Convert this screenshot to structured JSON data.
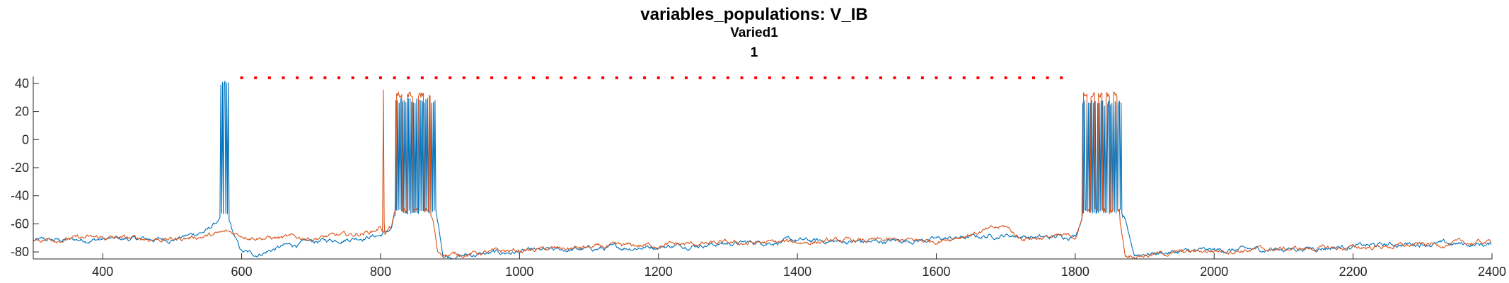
{
  "chart_data": {
    "type": "line",
    "title": "variables_populations: V_IB",
    "subtitle": "Varied1",
    "subtitle2": "1",
    "xlabel": "",
    "ylabel": "",
    "xlim": [
      300,
      2400
    ],
    "ylim": [
      -85,
      45
    ],
    "xticks": [
      400,
      600,
      800,
      1000,
      1200,
      1400,
      1600,
      1800,
      2000,
      2200,
      2400
    ],
    "yticks": [
      -80,
      -60,
      -40,
      -20,
      0,
      20,
      40
    ],
    "grid": false,
    "legend": "none",
    "colors": {
      "series1": "#0072BD",
      "series2": "#D95319",
      "marker": "#FF0000",
      "axis": "#262626"
    },
    "series": [
      {
        "color": "#0072BD",
        "baseline": [
          [
            300,
            -72
          ],
          [
            400,
            -71
          ],
          [
            500,
            -71
          ],
          [
            550,
            -65
          ],
          [
            570,
            -56
          ],
          [
            580,
            -55
          ],
          [
            590,
            -70
          ],
          [
            600,
            -80
          ],
          [
            620,
            -82
          ],
          [
            660,
            -76
          ],
          [
            700,
            -73
          ],
          [
            760,
            -70
          ],
          [
            800,
            -68
          ],
          [
            815,
            -64
          ],
          [
            820,
            -55
          ],
          [
            830,
            -53
          ],
          [
            880,
            -53
          ],
          [
            885,
            -66
          ],
          [
            890,
            -82
          ],
          [
            900,
            -83
          ],
          [
            1000,
            -80
          ],
          [
            1100,
            -78
          ],
          [
            1200,
            -76
          ],
          [
            1300,
            -74
          ],
          [
            1400,
            -72
          ],
          [
            1500,
            -73
          ],
          [
            1600,
            -71
          ],
          [
            1700,
            -68
          ],
          [
            1760,
            -70
          ],
          [
            1800,
            -68
          ],
          [
            1810,
            -55
          ],
          [
            1820,
            -53
          ],
          [
            1860,
            -53
          ],
          [
            1870,
            -55
          ],
          [
            1878,
            -70
          ],
          [
            1885,
            -82
          ],
          [
            1900,
            -81
          ],
          [
            2000,
            -79
          ],
          [
            2100,
            -78
          ],
          [
            2200,
            -76
          ],
          [
            2300,
            -74
          ],
          [
            2400,
            -75
          ]
        ],
        "spike_bursts": [
          {
            "start": 570,
            "end": 582,
            "count": 6,
            "peak": 43,
            "trough": -55
          },
          {
            "start": 822,
            "end": 880,
            "count": 26,
            "peak": 30,
            "trough": -53
          },
          {
            "start": 1810,
            "end": 1868,
            "count": 26,
            "peak": 28,
            "trough": -53
          }
        ]
      },
      {
        "color": "#D95319",
        "baseline": [
          [
            300,
            -71
          ],
          [
            400,
            -70
          ],
          [
            500,
            -71
          ],
          [
            560,
            -68
          ],
          [
            580,
            -66
          ],
          [
            600,
            -68
          ],
          [
            640,
            -70
          ],
          [
            700,
            -70
          ],
          [
            760,
            -68
          ],
          [
            790,
            -65
          ],
          [
            800,
            -62
          ],
          [
            805,
            -66
          ],
          [
            815,
            -62
          ],
          [
            820,
            -54
          ],
          [
            830,
            -52
          ],
          [
            870,
            -52
          ],
          [
            876,
            -60
          ],
          [
            882,
            -80
          ],
          [
            900,
            -82
          ],
          [
            1000,
            -79
          ],
          [
            1100,
            -77
          ],
          [
            1200,
            -75
          ],
          [
            1300,
            -74
          ],
          [
            1400,
            -73
          ],
          [
            1500,
            -72
          ],
          [
            1600,
            -72
          ],
          [
            1700,
            -62
          ],
          [
            1720,
            -70
          ],
          [
            1800,
            -69
          ],
          [
            1808,
            -60
          ],
          [
            1812,
            -52
          ],
          [
            1860,
            -52
          ],
          [
            1866,
            -62
          ],
          [
            1872,
            -82
          ],
          [
            1900,
            -82
          ],
          [
            2000,
            -79
          ],
          [
            2100,
            -78
          ],
          [
            2200,
            -77
          ],
          [
            2300,
            -75
          ],
          [
            2400,
            -73
          ]
        ],
        "spike_bursts": [
          {
            "start": 804,
            "end": 806,
            "count": 1,
            "peak": 38,
            "trough": -62
          },
          {
            "start": 820,
            "end": 872,
            "count": 40,
            "peak": 34,
            "trough": -52
          },
          {
            "start": 1810,
            "end": 1864,
            "count": 40,
            "peak": 34,
            "trough": -52
          }
        ]
      }
    ],
    "markers": {
      "y": 44,
      "x_start": 600,
      "x_end": 1780,
      "step": 20,
      "color": "#FF0000"
    }
  }
}
